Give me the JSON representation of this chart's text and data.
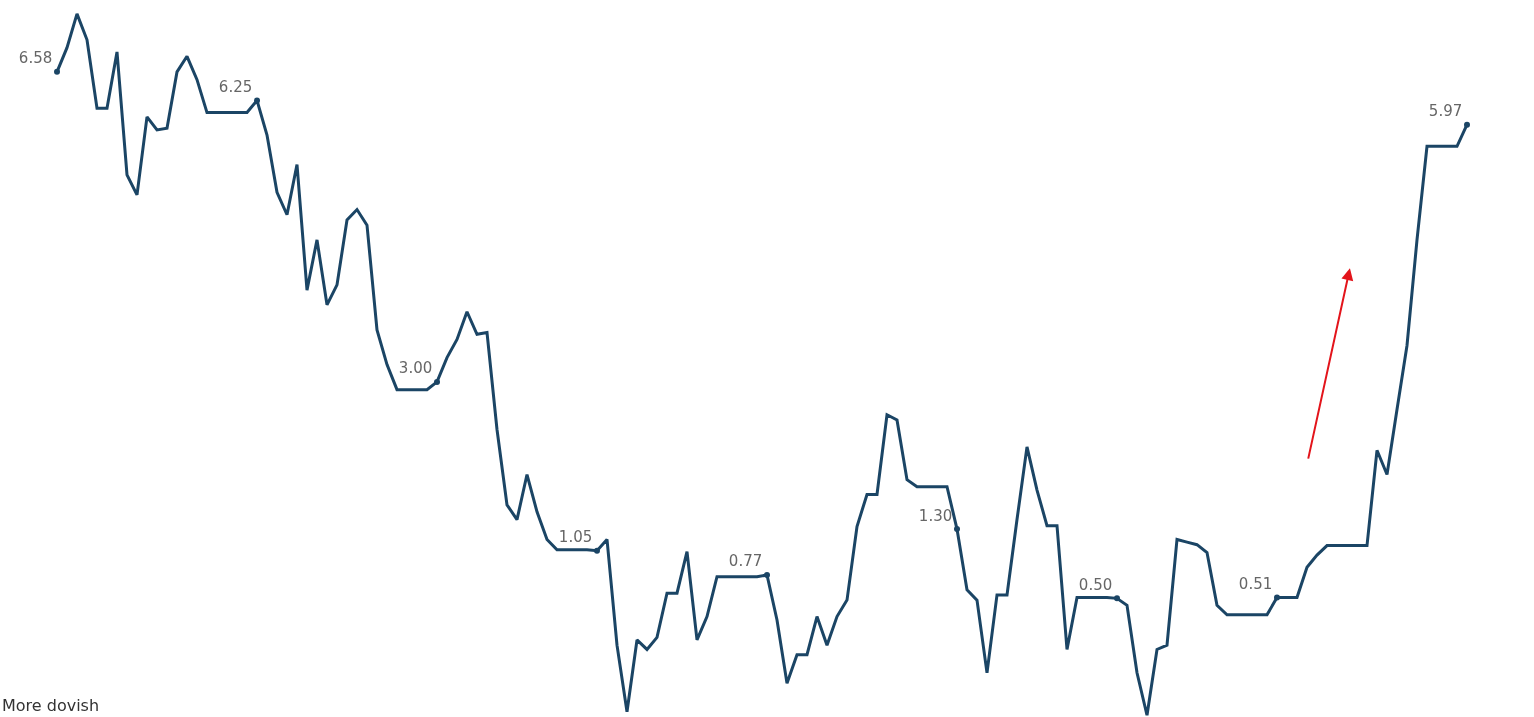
{
  "chart_data": {
    "type": "line",
    "categories": [
      null,
      null,
      null,
      null,
      null,
      null,
      null,
      null,
      null,
      null,
      null,
      null,
      null,
      null,
      null,
      null,
      null,
      null,
      null,
      null,
      null,
      null,
      null,
      null,
      null,
      null,
      null,
      null,
      null,
      null,
      null,
      null,
      null,
      null,
      null,
      null,
      null,
      null,
      null,
      null,
      null,
      null,
      null,
      null,
      null,
      null,
      null,
      null,
      null,
      null,
      null,
      null,
      null,
      null,
      null,
      null,
      null,
      null,
      null,
      null,
      null,
      null,
      null,
      null,
      null,
      null,
      null,
      null,
      null,
      null,
      null,
      null,
      null,
      null,
      null,
      null,
      null,
      null,
      null,
      null,
      null,
      null,
      null,
      null,
      null,
      null,
      null,
      null,
      null,
      null,
      null,
      null,
      null,
      null,
      null,
      null,
      null,
      null,
      null,
      null,
      null,
      null,
      null,
      null,
      null,
      null,
      null,
      null,
      null,
      null,
      null,
      null,
      null,
      null,
      null,
      null,
      null,
      null,
      null,
      null,
      null,
      null,
      null,
      null,
      null,
      null,
      null,
      null,
      null,
      null,
      null,
      null,
      null,
      null,
      null,
      null,
      null,
      null,
      null,
      null,
      null,
      null
    ],
    "series": [
      {
        "color": "#1b4565",
        "values": [
          6.58,
          6.86,
          7.25,
          6.95,
          6.16,
          6.16,
          6.81,
          5.39,
          5.16,
          6.06,
          5.91,
          5.93,
          6.58,
          6.76,
          6.49,
          6.11,
          6.11,
          6.11,
          6.11,
          6.11,
          6.25,
          5.85,
          5.19,
          4.93,
          5.51,
          4.06,
          4.64,
          3.89,
          4.12,
          4.87,
          4.99,
          4.81,
          3.6,
          3.2,
          2.91,
          2.91,
          2.91,
          2.91,
          3.0,
          3.28,
          3.49,
          3.81,
          3.55,
          3.57,
          2.45,
          1.58,
          1.41,
          1.93,
          1.5,
          1.18,
          1.06,
          1.06,
          1.06,
          1.06,
          1.05,
          1.18,
          -0.04,
          -0.81,
          0.02,
          -0.09,
          0.05,
          0.56,
          0.56,
          1.04,
          0.02,
          0.29,
          0.75,
          0.75,
          0.75,
          0.75,
          0.75,
          0.77,
          0.25,
          -0.48,
          -0.15,
          -0.15,
          0.29,
          -0.04,
          0.29,
          0.48,
          1.33,
          1.7,
          1.7,
          2.62,
          2.56,
          1.87,
          1.79,
          1.79,
          1.79,
          1.79,
          1.3,
          0.6,
          0.48,
          -0.36,
          0.54,
          0.54,
          1.41,
          2.25,
          1.75,
          1.34,
          1.34,
          -0.09,
          0.51,
          0.51,
          0.51,
          0.51,
          0.5,
          0.42,
          -0.36,
          -0.85,
          -0.09,
          -0.04,
          1.18,
          1.15,
          1.12,
          1.03,
          0.42,
          0.31,
          0.31,
          0.31,
          0.31,
          0.31,
          0.51,
          0.51,
          0.51,
          0.86,
          1.0,
          1.11,
          1.11,
          1.11,
          1.11,
          1.11,
          2.21,
          1.93,
          2.68,
          3.42,
          4.64,
          5.72,
          5.72,
          5.72,
          5.72,
          5.97
        ],
        "value_labels": [
          "6.58",
          null,
          null,
          null,
          null,
          null,
          null,
          null,
          null,
          null,
          null,
          null,
          null,
          null,
          null,
          null,
          null,
          null,
          null,
          null,
          "6.25",
          null,
          null,
          null,
          null,
          null,
          null,
          null,
          null,
          null,
          null,
          null,
          null,
          null,
          null,
          null,
          null,
          null,
          "3.00",
          null,
          null,
          null,
          null,
          null,
          null,
          null,
          null,
          null,
          null,
          null,
          null,
          null,
          null,
          null,
          "1.05",
          null,
          null,
          null,
          null,
          null,
          null,
          null,
          null,
          null,
          null,
          null,
          null,
          null,
          null,
          null,
          null,
          "0.77",
          null,
          null,
          null,
          null,
          null,
          null,
          null,
          null,
          null,
          null,
          null,
          null,
          null,
          null,
          null,
          null,
          null,
          null,
          "1.30",
          null,
          null,
          null,
          null,
          null,
          null,
          null,
          null,
          null,
          null,
          null,
          null,
          null,
          null,
          null,
          "0.50",
          null,
          null,
          null,
          null,
          null,
          null,
          null,
          null,
          null,
          null,
          null,
          null,
          null,
          null,
          null,
          "0.51",
          null,
          null,
          null,
          null,
          null,
          null,
          null,
          null,
          null,
          null,
          null,
          null,
          null,
          null,
          null,
          null,
          null,
          null,
          "5.97"
        ]
      }
    ],
    "ylim": [
      -0.87,
      7.41
    ],
    "tick_labels": false,
    "line_style": "solid",
    "annotations": [
      "More dovish"
    ]
  }
}
